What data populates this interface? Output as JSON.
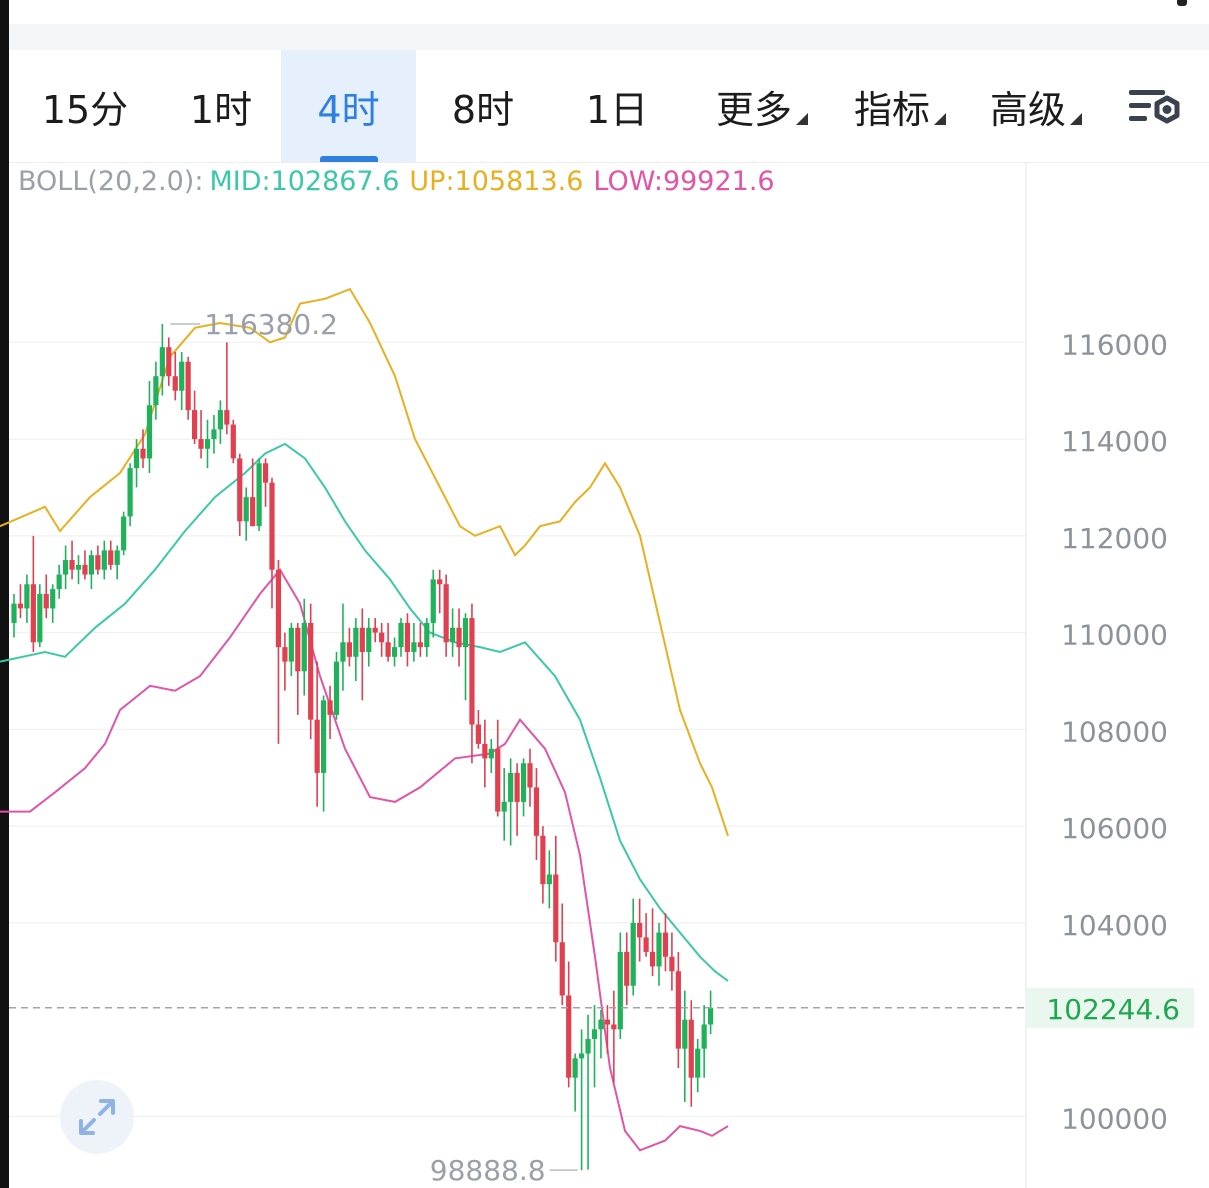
{
  "tabs": [
    {
      "label": "15分",
      "active": false,
      "dropdown": false
    },
    {
      "label": "1时",
      "active": false,
      "dropdown": false
    },
    {
      "label": "4时",
      "active": true,
      "dropdown": false
    },
    {
      "label": "8时",
      "active": false,
      "dropdown": false
    },
    {
      "label": "1日",
      "active": false,
      "dropdown": false
    },
    {
      "label": "更多",
      "active": false,
      "dropdown": true
    },
    {
      "label": "指标",
      "active": false,
      "dropdown": true
    },
    {
      "label": "高级",
      "active": false,
      "dropdown": true
    }
  ],
  "settings_icon": "chart-settings-icon",
  "indicator": {
    "name": "BOLL(20,2.0):",
    "mid": "MID:102867.6",
    "up": "UP:105813.6",
    "low": "LOW:99921.6"
  },
  "colors": {
    "mid": "#3cc8a8",
    "up": "#e8b020",
    "low": "#e055a8",
    "rise": "#1fb25a",
    "fall": "#e04050",
    "accent": "#2d7fe0",
    "price_tag": "#1fa84f"
  },
  "chart_data": {
    "type": "candlestick",
    "y_ticks": [
      "116000",
      "114000",
      "112000",
      "110000",
      "108000",
      "106000",
      "104000",
      "100000"
    ],
    "y_tick_values": [
      116000,
      114000,
      112000,
      110000,
      108000,
      106000,
      104000,
      100000
    ],
    "ylim": [
      98520,
      118880
    ],
    "max_label": "116380.2",
    "max_value": 116380.2,
    "min_label": "98888.8",
    "min_value": 98888.8,
    "current_price_label": "102244.6",
    "current_price": 102244.6,
    "candles": [
      [
        110200,
        110800,
        109900,
        110600
      ],
      [
        110600,
        111000,
        110300,
        110500
      ],
      [
        110500,
        111200,
        110200,
        111000
      ],
      [
        111000,
        112000,
        109600,
        109800
      ],
      [
        109800,
        111000,
        109700,
        110800
      ],
      [
        110800,
        111200,
        110300,
        110500
      ],
      [
        110500,
        111000,
        110200,
        110900
      ],
      [
        110900,
        111400,
        110700,
        111200
      ],
      [
        111200,
        111800,
        110900,
        111500
      ],
      [
        111500,
        111900,
        111100,
        111300
      ],
      [
        111300,
        111600,
        111000,
        111400
      ],
      [
        111400,
        111700,
        111100,
        111200
      ],
      [
        111200,
        111700,
        110900,
        111600
      ],
      [
        111600,
        111800,
        111200,
        111300
      ],
      [
        111300,
        111900,
        111100,
        111700
      ],
      [
        111700,
        111900,
        111300,
        111400
      ],
      [
        111400,
        111800,
        111100,
        111700
      ],
      [
        111700,
        112500,
        111600,
        112400
      ],
      [
        112400,
        113500,
        112200,
        113400
      ],
      [
        113400,
        114000,
        113000,
        113800
      ],
      [
        113800,
        114200,
        113400,
        113600
      ],
      [
        113600,
        115200,
        113300,
        114700
      ],
      [
        114700,
        115600,
        114400,
        115300
      ],
      [
        115300,
        116380,
        114900,
        115900
      ],
      [
        115900,
        116100,
        115100,
        115300
      ],
      [
        115300,
        115800,
        114800,
        115000
      ],
      [
        115000,
        115800,
        114600,
        115600
      ],
      [
        115600,
        115700,
        114400,
        114600
      ],
      [
        114600,
        115000,
        113900,
        114000
      ],
      [
        114000,
        114600,
        113600,
        113800
      ],
      [
        113800,
        114400,
        113400,
        114000
      ],
      [
        114000,
        114500,
        113700,
        114200
      ],
      [
        114200,
        114800,
        113900,
        114600
      ],
      [
        114600,
        116000,
        114100,
        114300
      ],
      [
        114300,
        114400,
        113500,
        113600
      ],
      [
        113600,
        113700,
        112000,
        112300
      ],
      [
        112300,
        113000,
        111900,
        112800
      ],
      [
        112800,
        113600,
        112200,
        112200
      ],
      [
        112200,
        113600,
        112100,
        113500
      ],
      [
        113500,
        113600,
        112600,
        113100
      ],
      [
        113100,
        113200,
        110500,
        111300
      ],
      [
        111300,
        111500,
        107700,
        109700
      ],
      [
        109700,
        110000,
        108800,
        109400
      ],
      [
        109400,
        110200,
        109100,
        110100
      ],
      [
        110100,
        110200,
        108300,
        109200
      ],
      [
        109200,
        110700,
        108700,
        110200
      ],
      [
        110200,
        110600,
        107800,
        108200
      ],
      [
        108200,
        109400,
        106400,
        107100
      ],
      [
        107100,
        108700,
        106300,
        108600
      ],
      [
        108600,
        108900,
        107800,
        108300
      ],
      [
        108300,
        109600,
        108200,
        109400
      ],
      [
        109400,
        110600,
        108800,
        109800
      ],
      [
        109800,
        110100,
        109300,
        109500
      ],
      [
        109500,
        110300,
        109000,
        110100
      ],
      [
        110100,
        110500,
        108600,
        109600
      ],
      [
        109600,
        110300,
        109300,
        110100
      ],
      [
        110100,
        110300,
        109800,
        110000
      ],
      [
        110000,
        110200,
        109500,
        109800
      ],
      [
        109800,
        110200,
        109400,
        109500
      ],
      [
        109500,
        109900,
        109300,
        109700
      ],
      [
        109700,
        110300,
        109500,
        110200
      ],
      [
        110200,
        110400,
        109300,
        109600
      ],
      [
        109600,
        110200,
        109400,
        109800
      ],
      [
        109800,
        110200,
        109500,
        109700
      ],
      [
        109700,
        110300,
        109500,
        110200
      ],
      [
        110200,
        111300,
        109900,
        111100
      ],
      [
        111100,
        111300,
        110400,
        111000
      ],
      [
        111000,
        111200,
        109500,
        109800
      ],
      [
        109800,
        110500,
        109500,
        110100
      ],
      [
        110100,
        110500,
        109300,
        109700
      ],
      [
        109700,
        110400,
        108600,
        110300
      ],
      [
        110300,
        110600,
        107300,
        108100
      ],
      [
        108100,
        108400,
        107600,
        107700
      ],
      [
        107700,
        108200,
        106800,
        107400
      ],
      [
        107400,
        107800,
        107100,
        107600
      ],
      [
        107600,
        108200,
        106200,
        106300
      ],
      [
        106300,
        107200,
        105700,
        106500
      ],
      [
        106500,
        107400,
        105600,
        107100
      ],
      [
        107100,
        107300,
        105800,
        106500
      ],
      [
        106500,
        107400,
        106200,
        107300
      ],
      [
        107300,
        107600,
        106400,
        106800
      ],
      [
        106800,
        107200,
        105300,
        105800
      ],
      [
        105800,
        106000,
        104400,
        104800
      ],
      [
        104800,
        105500,
        104300,
        105000
      ],
      [
        105000,
        105800,
        103200,
        103600
      ],
      [
        103600,
        104400,
        102300,
        102500
      ],
      [
        102500,
        103200,
        100600,
        100800
      ],
      [
        100800,
        101300,
        100100,
        101200
      ],
      [
        101200,
        101800,
        98889,
        101300
      ],
      [
        101300,
        102100,
        98900,
        101600
      ],
      [
        101600,
        102300,
        100600,
        101800
      ],
      [
        101800,
        102200,
        101200,
        102000
      ],
      [
        102000,
        102300,
        101300,
        101900
      ],
      [
        101900,
        102600,
        100700,
        101800
      ],
      [
        101800,
        103800,
        101600,
        103400
      ],
      [
        103400,
        103800,
        102300,
        102700
      ],
      [
        102700,
        104500,
        102500,
        104000
      ],
      [
        104000,
        104500,
        103200,
        103700
      ],
      [
        103700,
        104200,
        103300,
        103400
      ],
      [
        103400,
        104300,
        102900,
        103100
      ],
      [
        103100,
        104000,
        102700,
        103800
      ],
      [
        103800,
        104200,
        103000,
        103300
      ],
      [
        103300,
        103800,
        102600,
        103000
      ],
      [
        103000,
        103400,
        101000,
        101400
      ],
      [
        101400,
        102600,
        100300,
        102000
      ],
      [
        102000,
        102400,
        100200,
        100800
      ],
      [
        100800,
        101600,
        100500,
        101400
      ],
      [
        101400,
        102300,
        100800,
        101900
      ],
      [
        101900,
        102600,
        101700,
        102244.6
      ]
    ],
    "boll_mid": [
      [
        0,
        109400
      ],
      [
        45,
        109600
      ],
      [
        65,
        109500
      ],
      [
        95,
        110100
      ],
      [
        125,
        110600
      ],
      [
        155,
        111300
      ],
      [
        185,
        112100
      ],
      [
        215,
        112800
      ],
      [
        245,
        113300
      ],
      [
        265,
        113700
      ],
      [
        285,
        113900
      ],
      [
        305,
        113600
      ],
      [
        325,
        113000
      ],
      [
        345,
        112300
      ],
      [
        365,
        111700
      ],
      [
        390,
        111100
      ],
      [
        410,
        110500
      ],
      [
        430,
        110000
      ],
      [
        455,
        109800
      ],
      [
        480,
        109700
      ],
      [
        500,
        109600
      ],
      [
        525,
        109800
      ],
      [
        555,
        109100
      ],
      [
        580,
        108200
      ],
      [
        600,
        107000
      ],
      [
        620,
        105700
      ],
      [
        640,
        104900
      ],
      [
        660,
        104300
      ],
      [
        680,
        103800
      ],
      [
        700,
        103300
      ],
      [
        715,
        103000
      ],
      [
        728,
        102800
      ]
    ],
    "boll_up": [
      [
        0,
        112200
      ],
      [
        45,
        112600
      ],
      [
        60,
        112100
      ],
      [
        90,
        112800
      ],
      [
        120,
        113300
      ],
      [
        145,
        114100
      ],
      [
        170,
        115700
      ],
      [
        195,
        116300
      ],
      [
        220,
        116400
      ],
      [
        250,
        116300
      ],
      [
        270,
        116000
      ],
      [
        285,
        116100
      ],
      [
        300,
        116800
      ],
      [
        325,
        116900
      ],
      [
        350,
        117100
      ],
      [
        370,
        116400
      ],
      [
        395,
        115300
      ],
      [
        415,
        114000
      ],
      [
        440,
        113000
      ],
      [
        460,
        112200
      ],
      [
        475,
        112000
      ],
      [
        500,
        112200
      ],
      [
        515,
        111600
      ],
      [
        525,
        111800
      ],
      [
        540,
        112200
      ],
      [
        560,
        112300
      ],
      [
        575,
        112700
      ],
      [
        590,
        113000
      ],
      [
        605,
        113500
      ],
      [
        620,
        113000
      ],
      [
        640,
        112000
      ],
      [
        660,
        110200
      ],
      [
        680,
        108400
      ],
      [
        700,
        107300
      ],
      [
        712,
        106800
      ],
      [
        728,
        105800
      ]
    ],
    "boll_low": [
      [
        0,
        106300
      ],
      [
        30,
        106300
      ],
      [
        55,
        106700
      ],
      [
        85,
        107200
      ],
      [
        105,
        107700
      ],
      [
        120,
        108400
      ],
      [
        150,
        108900
      ],
      [
        175,
        108800
      ],
      [
        200,
        109100
      ],
      [
        230,
        109900
      ],
      [
        260,
        110800
      ],
      [
        280,
        111300
      ],
      [
        300,
        110600
      ],
      [
        320,
        109100
      ],
      [
        345,
        107600
      ],
      [
        370,
        106600
      ],
      [
        395,
        106500
      ],
      [
        420,
        106800
      ],
      [
        455,
        107400
      ],
      [
        490,
        107500
      ],
      [
        505,
        107700
      ],
      [
        520,
        108200
      ],
      [
        545,
        107600
      ],
      [
        565,
        106700
      ],
      [
        580,
        105400
      ],
      [
        595,
        103300
      ],
      [
        610,
        101000
      ],
      [
        625,
        99700
      ],
      [
        640,
        99300
      ],
      [
        665,
        99500
      ],
      [
        680,
        99800
      ],
      [
        700,
        99700
      ],
      [
        712,
        99600
      ],
      [
        728,
        99800
      ]
    ]
  }
}
